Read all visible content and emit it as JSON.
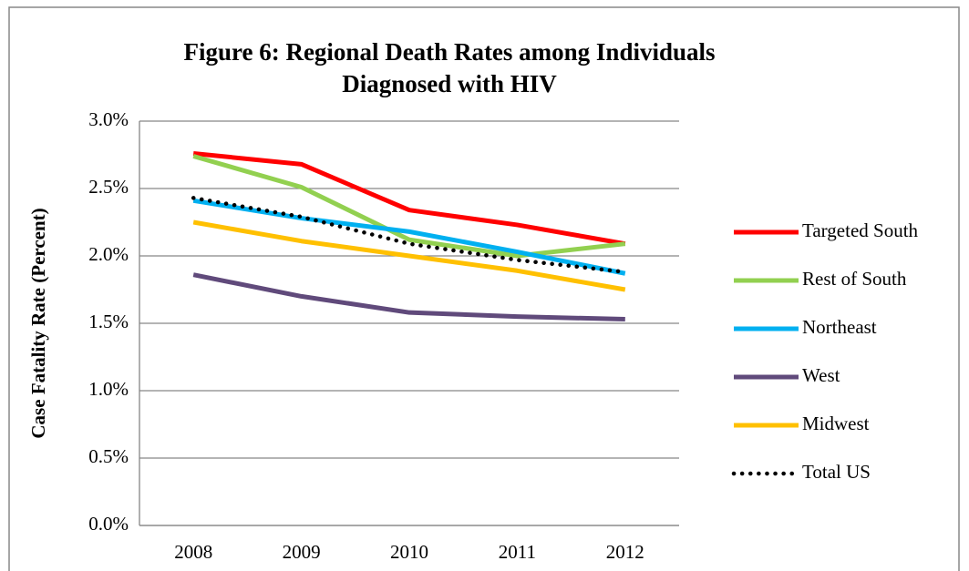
{
  "chart_data": {
    "type": "line",
    "title": [
      "Figure 6: Regional Death Rates among Individuals",
      "Diagnosed with HIV"
    ],
    "ylabel": "Case Fatality Rate (Percent)",
    "categories": [
      "2008",
      "2009",
      "2010",
      "2011",
      "2012"
    ],
    "ylim": [
      0,
      3
    ],
    "yticks": [
      {
        "value": 0,
        "label": "0.0%"
      },
      {
        "value": 0.5,
        "label": "0.5%"
      },
      {
        "value": 1,
        "label": "1.0%"
      },
      {
        "value": 1.5,
        "label": "1.5%"
      },
      {
        "value": 2,
        "label": "2.0%"
      },
      {
        "value": 2.5,
        "label": "2.5%"
      },
      {
        "value": 3,
        "label": "3.0%"
      }
    ],
    "grid": true,
    "legend": "right",
    "series": [
      {
        "name": "Targeted South",
        "color": "#ff0000",
        "style": "solid",
        "values": [
          2.76,
          2.68,
          2.34,
          2.23,
          2.09
        ]
      },
      {
        "name": "Rest of South",
        "color": "#92d050",
        "style": "solid",
        "values": [
          2.74,
          2.51,
          2.12,
          2.0,
          2.09
        ]
      },
      {
        "name": "Northeast",
        "color": "#00b0f0",
        "style": "solid",
        "values": [
          2.41,
          2.28,
          2.18,
          2.03,
          1.87
        ]
      },
      {
        "name": "West",
        "color": "#604a7b",
        "style": "solid",
        "values": [
          1.86,
          1.7,
          1.58,
          1.55,
          1.53
        ]
      },
      {
        "name": "Midwest",
        "color": "#ffc000",
        "style": "solid",
        "values": [
          2.25,
          2.11,
          2.0,
          1.89,
          1.75
        ]
      },
      {
        "name": "Total US",
        "color": "#000000",
        "style": "dotted",
        "values": [
          2.43,
          2.29,
          2.09,
          1.97,
          1.88
        ]
      }
    ]
  }
}
